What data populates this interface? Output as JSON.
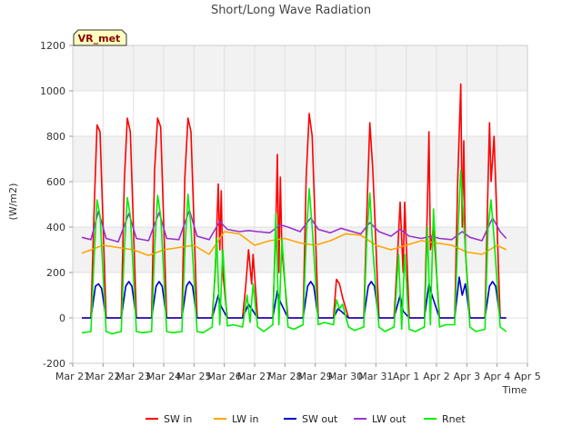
{
  "chart_data": {
    "type": "line",
    "title": "Short/Long Wave Radiation",
    "xlabel": "Time",
    "ylabel": "(W/m2)",
    "badge": "VR_met",
    "xlim": [
      0,
      15
    ],
    "ylim": [
      -200,
      1200
    ],
    "x_ticks": [
      {
        "pos": 0,
        "label": "Mar 21"
      },
      {
        "pos": 1,
        "label": "Mar 22"
      },
      {
        "pos": 2,
        "label": "Mar 23"
      },
      {
        "pos": 3,
        "label": "Mar 24"
      },
      {
        "pos": 4,
        "label": "Mar 25"
      },
      {
        "pos": 5,
        "label": "Mar 26"
      },
      {
        "pos": 6,
        "label": "Mar 27"
      },
      {
        "pos": 7,
        "label": "Mar 28"
      },
      {
        "pos": 8,
        "label": "Mar 29"
      },
      {
        "pos": 9,
        "label": "Mar 30"
      },
      {
        "pos": 10,
        "label": "Mar 31"
      },
      {
        "pos": 11,
        "label": "Apr 1"
      },
      {
        "pos": 12,
        "label": "Apr 2"
      },
      {
        "pos": 13,
        "label": "Apr 3"
      },
      {
        "pos": 14,
        "label": "Apr 4"
      },
      {
        "pos": 15,
        "label": "Apr 5"
      }
    ],
    "y_ticks": [
      -200,
      0,
      200,
      400,
      600,
      800,
      1000,
      1200
    ],
    "bands": [
      [
        200,
        400
      ],
      [
        600,
        800
      ],
      [
        1000,
        1200
      ]
    ],
    "series": [
      {
        "name": "SW in",
        "color": "#ff0000",
        "x": [
          0.3,
          0.6,
          0.7,
          0.8,
          0.9,
          1.1,
          1.3,
          1.6,
          1.7,
          1.8,
          1.9,
          2.1,
          2.3,
          2.6,
          2.7,
          2.8,
          2.9,
          3.1,
          3.3,
          3.6,
          3.7,
          3.8,
          3.9,
          4.1,
          4.3,
          4.6,
          4.7,
          4.8,
          4.85,
          4.9,
          4.95,
          5.1,
          5.3,
          5.6,
          5.7,
          5.8,
          5.9,
          5.95,
          6.1,
          6.3,
          6.6,
          6.7,
          6.75,
          6.8,
          6.85,
          6.9,
          7.1,
          7.3,
          7.6,
          7.7,
          7.8,
          7.9,
          8.1,
          8.3,
          8.6,
          8.7,
          8.8,
          8.9,
          9.1,
          9.3,
          9.6,
          9.7,
          9.8,
          9.9,
          10.1,
          10.3,
          10.6,
          10.7,
          10.8,
          10.9,
          10.95,
          11.1,
          11.3,
          11.6,
          11.7,
          11.75,
          11.8,
          11.9,
          12.1,
          12.3,
          12.6,
          12.7,
          12.8,
          12.85,
          12.9,
          12.95,
          13.1,
          13.3,
          13.6,
          13.7,
          13.75,
          13.8,
          13.9,
          14.1,
          14.3
        ],
        "y": [
          0,
          0,
          450,
          850,
          820,
          0,
          0,
          0,
          600,
          880,
          820,
          0,
          0,
          0,
          650,
          880,
          840,
          0,
          0,
          0,
          620,
          880,
          820,
          0,
          0,
          0,
          200,
          590,
          300,
          560,
          200,
          0,
          0,
          0,
          130,
          300,
          150,
          280,
          0,
          0,
          0,
          400,
          720,
          200,
          620,
          300,
          0,
          0,
          0,
          620,
          900,
          800,
          0,
          0,
          0,
          170,
          150,
          90,
          0,
          0,
          0,
          450,
          860,
          650,
          0,
          0,
          0,
          240,
          510,
          200,
          510,
          0,
          0,
          0,
          500,
          820,
          300,
          400,
          0,
          0,
          0,
          600,
          1030,
          400,
          780,
          300,
          0,
          0,
          0,
          600,
          860,
          600,
          800,
          0,
          0
        ]
      },
      {
        "name": "LW in",
        "color": "#ffa500",
        "x": [
          0.3,
          1.0,
          2.0,
          2.5,
          3.0,
          4.0,
          4.5,
          5.0,
          5.5,
          6.0,
          6.5,
          7.0,
          7.5,
          8.0,
          8.5,
          9.0,
          9.5,
          10.0,
          10.5,
          11.0,
          11.5,
          12.0,
          12.5,
          13.0,
          13.5,
          14.0,
          14.3
        ],
        "y": [
          285,
          320,
          300,
          275,
          300,
          320,
          280,
          380,
          370,
          320,
          340,
          350,
          330,
          320,
          340,
          370,
          365,
          320,
          300,
          320,
          340,
          330,
          320,
          290,
          280,
          320,
          300
        ]
      },
      {
        "name": "SW out",
        "color": "#0000cc",
        "x": [
          0.3,
          0.6,
          0.75,
          0.85,
          0.95,
          1.1,
          1.3,
          1.6,
          1.75,
          1.85,
          1.95,
          2.1,
          2.3,
          2.6,
          2.75,
          2.85,
          2.95,
          3.1,
          3.3,
          3.6,
          3.75,
          3.85,
          3.95,
          4.1,
          4.3,
          4.6,
          4.8,
          4.9,
          5.1,
          5.3,
          5.6,
          5.8,
          5.9,
          6.1,
          6.3,
          6.6,
          6.75,
          6.85,
          7.1,
          7.3,
          7.6,
          7.75,
          7.85,
          7.95,
          8.1,
          8.3,
          8.6,
          8.75,
          8.85,
          9.1,
          9.3,
          9.6,
          9.75,
          9.85,
          9.95,
          10.1,
          10.3,
          10.6,
          10.8,
          10.9,
          11.1,
          11.3,
          11.6,
          11.75,
          11.85,
          12.1,
          12.3,
          12.6,
          12.75,
          12.85,
          12.95,
          13.1,
          13.3,
          13.6,
          13.75,
          13.85,
          13.95,
          14.1,
          14.3
        ],
        "y": [
          0,
          0,
          140,
          150,
          130,
          0,
          0,
          0,
          140,
          160,
          140,
          0,
          0,
          0,
          140,
          160,
          140,
          0,
          0,
          0,
          140,
          160,
          140,
          0,
          0,
          0,
          100,
          50,
          0,
          0,
          0,
          60,
          40,
          0,
          0,
          0,
          120,
          70,
          0,
          0,
          0,
          140,
          160,
          140,
          0,
          0,
          0,
          40,
          30,
          0,
          0,
          0,
          140,
          160,
          140,
          0,
          0,
          0,
          100,
          30,
          0,
          0,
          0,
          150,
          100,
          0,
          0,
          0,
          180,
          100,
          150,
          0,
          0,
          0,
          140,
          160,
          140,
          0,
          0
        ]
      },
      {
        "name": "LW out",
        "color": "#9933cc",
        "x": [
          0.3,
          0.6,
          0.85,
          1.1,
          1.5,
          1.85,
          2.1,
          2.5,
          2.85,
          3.1,
          3.5,
          3.85,
          4.1,
          4.5,
          4.85,
          5.1,
          5.5,
          5.8,
          6.1,
          6.5,
          6.85,
          7.1,
          7.5,
          7.85,
          8.1,
          8.5,
          8.85,
          9.1,
          9.5,
          9.8,
          10.1,
          10.5,
          10.8,
          11.1,
          11.5,
          11.85,
          12.1,
          12.5,
          12.85,
          13.1,
          13.5,
          13.85,
          14.1,
          14.3
        ],
        "y": [
          355,
          345,
          470,
          350,
          335,
          460,
          350,
          340,
          465,
          350,
          345,
          475,
          360,
          345,
          425,
          390,
          380,
          385,
          380,
          375,
          410,
          400,
          380,
          440,
          390,
          375,
          395,
          385,
          370,
          420,
          380,
          360,
          390,
          360,
          350,
          360,
          350,
          345,
          380,
          355,
          340,
          440,
          380,
          350
        ]
      },
      {
        "name": "Rnet",
        "color": "#00ee00",
        "x": [
          0.3,
          0.6,
          0.7,
          0.8,
          0.9,
          1.1,
          1.3,
          1.6,
          1.7,
          1.8,
          1.9,
          2.1,
          2.3,
          2.6,
          2.7,
          2.8,
          2.9,
          3.1,
          3.3,
          3.6,
          3.7,
          3.8,
          3.9,
          4.1,
          4.3,
          4.6,
          4.75,
          4.85,
          4.95,
          5.1,
          5.3,
          5.6,
          5.75,
          5.85,
          5.95,
          6.1,
          6.3,
          6.6,
          6.7,
          6.8,
          6.9,
          7.1,
          7.3,
          7.6,
          7.7,
          7.8,
          7.9,
          8.1,
          8.3,
          8.6,
          8.7,
          8.8,
          8.9,
          9.1,
          9.3,
          9.6,
          9.7,
          9.8,
          9.9,
          10.1,
          10.3,
          10.6,
          10.75,
          10.85,
          10.95,
          11.1,
          11.3,
          11.6,
          11.7,
          11.8,
          11.9,
          12.1,
          12.3,
          12.6,
          12.7,
          12.8,
          12.9,
          13.1,
          13.3,
          13.6,
          13.7,
          13.8,
          13.9,
          14.1,
          14.3
        ],
        "y": [
          -65,
          -60,
          250,
          520,
          450,
          -60,
          -70,
          -60,
          300,
          530,
          450,
          -60,
          -65,
          -60,
          300,
          540,
          450,
          -60,
          -65,
          -60,
          300,
          545,
          400,
          -60,
          -65,
          -40,
          350,
          -30,
          300,
          -35,
          -30,
          -40,
          100,
          -20,
          150,
          -40,
          -60,
          -30,
          460,
          -30,
          350,
          -40,
          -50,
          -30,
          350,
          570,
          400,
          -30,
          -20,
          -30,
          80,
          40,
          60,
          -40,
          -55,
          -40,
          350,
          550,
          300,
          -40,
          -60,
          -40,
          280,
          -50,
          280,
          -50,
          -60,
          -40,
          400,
          -30,
          480,
          -40,
          -30,
          -30,
          350,
          650,
          420,
          -40,
          -60,
          -50,
          400,
          520,
          350,
          -40,
          -60
        ]
      }
    ]
  }
}
